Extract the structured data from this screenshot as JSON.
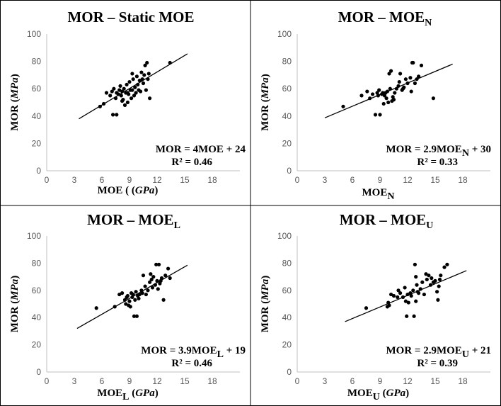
{
  "chart_data": [
    {
      "type": "scatter",
      "title": "MOR – Static MOE",
      "title_sub": "",
      "ylabel_main": "MOR (",
      "ylabel_unit": "MPa",
      "ylabel_end": ")",
      "xlabel_main": "MOE (",
      "xlabel_sub": "",
      "xlabel_unit": "GPa",
      "xlabel_end": ")",
      "eq_main": "MOR = 4MOE",
      "eq_sub": "",
      "eq_end": " + 24",
      "r2": "R² = 0.46",
      "xlim": [
        0,
        21
      ],
      "ylim": [
        0,
        100
      ],
      "xticks": [
        "0",
        "3",
        "6",
        "9",
        "12",
        "15",
        "18"
      ],
      "yticks": [
        "0",
        "20",
        "40",
        "60",
        "80",
        "100"
      ],
      "trendline": {
        "x": [
          3.5,
          15.3
        ],
        "y": [
          38,
          85.5
        ]
      },
      "points": [
        [
          5.8,
          47
        ],
        [
          6.2,
          49
        ],
        [
          6.5,
          57
        ],
        [
          6.9,
          55
        ],
        [
          7.1,
          58
        ],
        [
          7.3,
          60
        ],
        [
          7.5,
          53
        ],
        [
          7.6,
          57
        ],
        [
          7.8,
          56
        ],
        [
          7.9,
          59
        ],
        [
          8.0,
          62
        ],
        [
          8.1,
          55
        ],
        [
          8.2,
          58
        ],
        [
          8.3,
          52
        ],
        [
          8.4,
          60
        ],
        [
          8.5,
          48
        ],
        [
          8.6,
          57
        ],
        [
          8.7,
          63
        ],
        [
          8.8,
          50
        ],
        [
          8.9,
          56
        ],
        [
          9.0,
          65
        ],
        [
          9.1,
          59
        ],
        [
          9.2,
          53
        ],
        [
          9.3,
          71
        ],
        [
          9.4,
          67
        ],
        [
          9.6,
          61
        ],
        [
          9.7,
          57
        ],
        [
          9.8,
          69
        ],
        [
          9.9,
          63
        ],
        [
          10.1,
          66
        ],
        [
          10.2,
          58
        ],
        [
          10.3,
          72
        ],
        [
          10.5,
          64
        ],
        [
          10.6,
          70
        ],
        [
          10.7,
          77
        ],
        [
          10.8,
          59
        ],
        [
          10.9,
          79
        ],
        [
          11.0,
          67
        ],
        [
          11.1,
          71
        ],
        [
          11.2,
          53
        ],
        [
          7.2,
          41
        ],
        [
          7.6,
          41
        ],
        [
          9.5,
          55
        ],
        [
          10.0,
          59
        ],
        [
          13.4,
          79
        ],
        [
          8.2,
          51
        ],
        [
          8.8,
          57
        ],
        [
          9.3,
          59
        ],
        [
          10.4,
          67
        ]
      ]
    },
    {
      "type": "scatter",
      "title": "MOR – MOE",
      "title_sub": "N",
      "ylabel_main": "MOR (",
      "ylabel_unit": "MPa",
      "ylabel_end": ")",
      "xlabel_main": "MOE",
      "xlabel_sub": "N",
      "xlabel_unit": "",
      "xlabel_end": "",
      "eq_main": "MOR = 2.9MOE",
      "eq_sub": "N",
      "eq_end": " + 30",
      "r2": "R² = 0.33",
      "xlim": [
        0,
        21
      ],
      "ylim": [
        0,
        100
      ],
      "xticks": [
        "0",
        "3",
        "6",
        "9",
        "12",
        "15",
        "18"
      ],
      "yticks": [
        "0",
        "20",
        "40",
        "60",
        "80",
        "100"
      ],
      "trendline": {
        "x": [
          3.0,
          16.9
        ],
        "y": [
          38.7,
          78
        ]
      },
      "points": [
        [
          5.0,
          47
        ],
        [
          7.0,
          55
        ],
        [
          7.6,
          58
        ],
        [
          7.9,
          53
        ],
        [
          8.2,
          56
        ],
        [
          8.5,
          41
        ],
        [
          8.7,
          57
        ],
        [
          8.9,
          59
        ],
        [
          9.0,
          41
        ],
        [
          9.2,
          56
        ],
        [
          9.4,
          49
        ],
        [
          9.5,
          55
        ],
        [
          9.6,
          57
        ],
        [
          9.8,
          58
        ],
        [
          9.9,
          50
        ],
        [
          10.0,
          71
        ],
        [
          10.1,
          60
        ],
        [
          10.2,
          73
        ],
        [
          10.4,
          54
        ],
        [
          10.5,
          52
        ],
        [
          10.6,
          57
        ],
        [
          10.8,
          60
        ],
        [
          11.0,
          62
        ],
        [
          11.1,
          65
        ],
        [
          11.2,
          71
        ],
        [
          11.4,
          59
        ],
        [
          11.6,
          61
        ],
        [
          11.8,
          67
        ],
        [
          12.0,
          64
        ],
        [
          12.3,
          68
        ],
        [
          12.5,
          79
        ],
        [
          12.6,
          79
        ],
        [
          12.8,
          64
        ],
        [
          13.0,
          67
        ],
        [
          13.2,
          69
        ],
        [
          13.5,
          77
        ],
        [
          14.8,
          53
        ],
        [
          9.3,
          57
        ],
        [
          10.3,
          51
        ],
        [
          9.7,
          53
        ],
        [
          11.5,
          60
        ],
        [
          12.4,
          58
        ],
        [
          8.8,
          55
        ]
      ]
    },
    {
      "type": "scatter",
      "title": "MOR – MOE",
      "title_sub": "L",
      "ylabel_main": "MOR (",
      "ylabel_unit": "MPa",
      "ylabel_end": ")",
      "xlabel_main": "MOE",
      "xlabel_sub": "L",
      "xlabel_unit": "GPa",
      "xlabel_end": ")",
      "eq_main": "MOR = 3.9MOE",
      "eq_sub": "L",
      "eq_end": " + 19",
      "r2": "R² = 0.46",
      "xlim": [
        0,
        21
      ],
      "ylim": [
        0,
        100
      ],
      "xticks": [
        "0",
        "3",
        "6",
        "9",
        "12",
        "15",
        "18"
      ],
      "yticks": [
        "0",
        "20",
        "40",
        "60",
        "80",
        "100"
      ],
      "trendline": {
        "x": [
          3.3,
          15.3
        ],
        "y": [
          32,
          78.5
        ]
      },
      "points": [
        [
          5.4,
          47
        ],
        [
          7.4,
          48
        ],
        [
          7.9,
          57
        ],
        [
          8.2,
          58
        ],
        [
          8.6,
          50
        ],
        [
          8.7,
          55
        ],
        [
          8.8,
          56
        ],
        [
          8.9,
          49
        ],
        [
          9.0,
          52
        ],
        [
          9.2,
          58
        ],
        [
          9.4,
          57
        ],
        [
          9.5,
          41
        ],
        [
          9.6,
          53
        ],
        [
          9.7,
          59
        ],
        [
          9.8,
          41
        ],
        [
          9.9,
          56
        ],
        [
          10.1,
          57
        ],
        [
          10.3,
          60
        ],
        [
          10.4,
          58
        ],
        [
          10.5,
          71
        ],
        [
          10.8,
          57
        ],
        [
          11.0,
          60
        ],
        [
          11.2,
          66
        ],
        [
          11.3,
          72
        ],
        [
          11.5,
          62
        ],
        [
          11.6,
          70
        ],
        [
          11.8,
          64
        ],
        [
          11.9,
          79
        ],
        [
          12.0,
          67
        ],
        [
          12.1,
          61
        ],
        [
          12.2,
          79
        ],
        [
          12.3,
          65
        ],
        [
          12.5,
          69
        ],
        [
          12.7,
          53
        ],
        [
          12.9,
          71
        ],
        [
          13.2,
          76
        ],
        [
          13.4,
          69
        ],
        [
          9.3,
          55
        ],
        [
          10.0,
          54
        ],
        [
          10.7,
          63
        ],
        [
          11.4,
          68
        ],
        [
          12.4,
          67
        ],
        [
          8.5,
          53
        ],
        [
          9.1,
          48
        ]
      ]
    },
    {
      "type": "scatter",
      "title": "MOR – MOE",
      "title_sub": "U",
      "ylabel_main": "MOR (",
      "ylabel_unit": "MPa",
      "ylabel_end": ")",
      "xlabel_main": "MOE",
      "xlabel_sub": "U",
      "xlabel_unit": "GPa",
      "xlabel_end": ")",
      "eq_main": "MOR = 2.9MOE",
      "eq_sub": "U",
      "eq_end": " + 21",
      "r2": "R² = 0.39",
      "xlim": [
        0,
        21
      ],
      "ylim": [
        0,
        100
      ],
      "xticks": [
        "0",
        "3",
        "6",
        "9",
        "12",
        "15",
        "18"
      ],
      "yticks": [
        "0",
        "20",
        "40",
        "60",
        "80",
        "100"
      ],
      "trendline": {
        "x": [
          5.2,
          18.4
        ],
        "y": [
          37,
          74.5
        ]
      },
      "points": [
        [
          7.5,
          47
        ],
        [
          9.8,
          48
        ],
        [
          9.9,
          51
        ],
        [
          10.2,
          57
        ],
        [
          10.5,
          56
        ],
        [
          10.9,
          55
        ],
        [
          11.2,
          58
        ],
        [
          11.5,
          55
        ],
        [
          11.8,
          52
        ],
        [
          11.9,
          41
        ],
        [
          12.0,
          57
        ],
        [
          12.1,
          51
        ],
        [
          12.3,
          58
        ],
        [
          12.6,
          60
        ],
        [
          12.7,
          41
        ],
        [
          12.8,
          79
        ],
        [
          12.9,
          70
        ],
        [
          13.0,
          64
        ],
        [
          13.2,
          58
        ],
        [
          13.4,
          61
        ],
        [
          13.6,
          66
        ],
        [
          13.8,
          57
        ],
        [
          14.0,
          72
        ],
        [
          14.1,
          68
        ],
        [
          14.3,
          71
        ],
        [
          14.5,
          64
        ],
        [
          14.8,
          66
        ],
        [
          15.0,
          67
        ],
        [
          15.2,
          59
        ],
        [
          15.3,
          53
        ],
        [
          15.4,
          63
        ],
        [
          15.6,
          71
        ],
        [
          16.0,
          77
        ],
        [
          16.3,
          79
        ],
        [
          10.0,
          49
        ],
        [
          11.0,
          60
        ],
        [
          12.4,
          56
        ],
        [
          13.1,
          59
        ],
        [
          14.6,
          69
        ],
        [
          15.5,
          68
        ],
        [
          11.7,
          62
        ],
        [
          12.9,
          52
        ]
      ]
    }
  ]
}
